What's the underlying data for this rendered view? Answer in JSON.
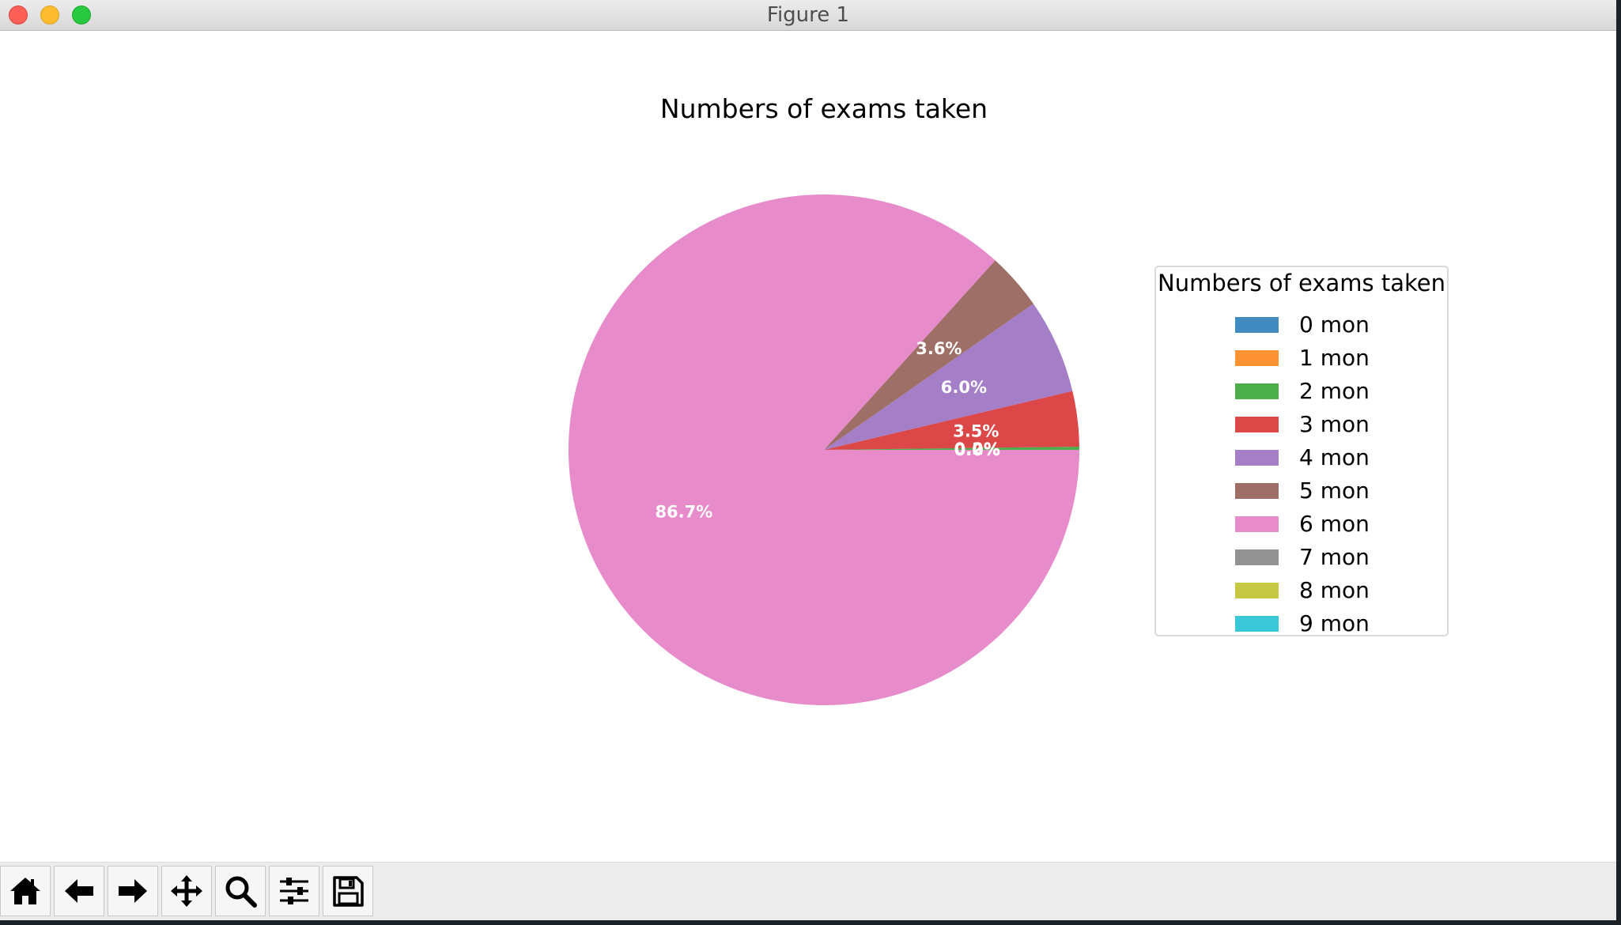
{
  "window": {
    "title": "Figure 1"
  },
  "toolbar": {
    "buttons": [
      {
        "name": "home-icon",
        "label": "Home"
      },
      {
        "name": "back-arrow-icon",
        "label": "Back"
      },
      {
        "name": "forward-arrow-icon",
        "label": "Forward"
      },
      {
        "name": "pan-move-icon",
        "label": "Pan"
      },
      {
        "name": "zoom-magnifier-icon",
        "label": "Zoom"
      },
      {
        "name": "configure-subplots-icon",
        "label": "Subplots"
      },
      {
        "name": "save-floppy-icon",
        "label": "Save"
      }
    ]
  },
  "chart_data": {
    "type": "pie",
    "title": "Numbers of exams taken",
    "legend_title": "Numbers of exams taken",
    "legend_position": "right",
    "categories": [
      "0 mon",
      "1 mon",
      "2 mon",
      "3 mon",
      "4 mon",
      "5 mon",
      "6 mon",
      "7 mon",
      "8 mon",
      "9 mon"
    ],
    "values": [
      0.0,
      0.0,
      0.2,
      3.5,
      6.0,
      3.6,
      86.7,
      0.0,
      0.0,
      0.0
    ],
    "autopct_labels": [
      "0.0%",
      "0.0%",
      "0.2%",
      "3.5%",
      "6.0%",
      "3.6%",
      "86.7%",
      "",
      "",
      ""
    ],
    "colors": [
      "#1f77b4",
      "#ff7f0e",
      "#2ca02c",
      "#d62728",
      "#9467bd",
      "#8c564b",
      "#e377c2",
      "#7f7f7f",
      "#bcbd22",
      "#17becf"
    ],
    "slice_alpha": 0.85,
    "startangle": 0
  }
}
